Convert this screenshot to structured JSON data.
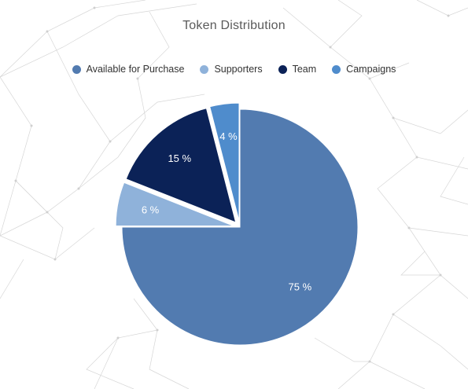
{
  "chart_data": {
    "type": "pie",
    "title": "Token Distribution",
    "categories": [
      "Available for Purchase",
      "Supporters",
      "Team",
      "Campaigns"
    ],
    "values": [
      75,
      6,
      15,
      4
    ],
    "data_labels": [
      "75 %",
      "6 %",
      "15 %",
      "4 %"
    ],
    "colors": [
      "#527bb0",
      "#8fb2da",
      "#0b2257",
      "#4f8ccc"
    ],
    "exploded": [
      false,
      true,
      true,
      true
    ],
    "legend_position": "top"
  }
}
